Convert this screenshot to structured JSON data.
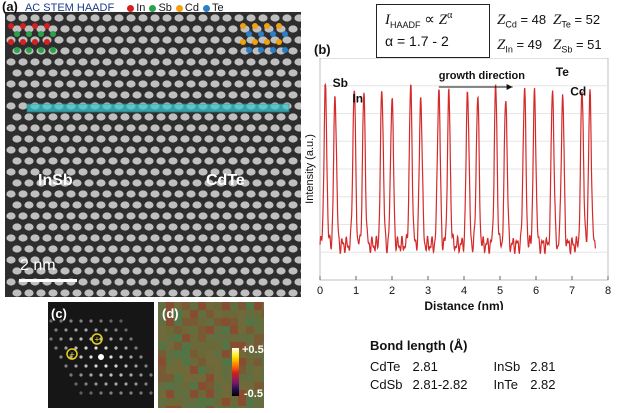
{
  "panel_a": {
    "label": "(a)",
    "technique": "AC STEM HAADF",
    "legend": [
      {
        "element": "In",
        "color": "#d42020"
      },
      {
        "element": "Sb",
        "color": "#2aa24a"
      },
      {
        "element": "Cd",
        "color": "#f0a010"
      },
      {
        "element": "Te",
        "color": "#2a7fc8"
      }
    ],
    "region_left": "InSb",
    "region_right": "CdTe",
    "scale_bar": "2 nm",
    "line_color": "#3cc8d0"
  },
  "equation": {
    "line1_I": "I",
    "line1_sub": "HAADF",
    "line1_prop": "∝",
    "line1_Z": "Z",
    "line1_exp": "α",
    "line2": "α = 1.7 - 2"
  },
  "z_values": [
    {
      "sym": "Z",
      "sub": "Cd",
      "val": "= 48"
    },
    {
      "sym": "Z",
      "sub": "Te",
      "val": "= 52"
    },
    {
      "sym": "Z",
      "sub": "In",
      "val": "= 49"
    },
    {
      "sym": "Z",
      "sub": "Sb",
      "val": "= 51"
    }
  ],
  "panel_b": {
    "label": "(b)"
  },
  "chart_data": {
    "type": "line",
    "xlabel": "Distance (nm)",
    "ylabel": "Intensity (a.u.)",
    "xlim": [
      0,
      8
    ],
    "xticks": [
      "0",
      "1",
      "2",
      "3",
      "4",
      "5",
      "6",
      "7",
      "8"
    ],
    "line_color": "#d42a2a",
    "annotations": [
      "Sb",
      "In",
      "growth direction",
      "Te",
      "Cd"
    ],
    "x_peaks": [
      0.15,
      0.42,
      0.95,
      1.22,
      1.72,
      2.0,
      2.52,
      2.8,
      3.3,
      3.58,
      4.1,
      4.38,
      4.88,
      5.16,
      5.68,
      5.96,
      6.46,
      6.74,
      7.28,
      7.5
    ],
    "peak_pattern": "approximately periodic double peaks, ~0.79 nm period"
  },
  "panel_c": {
    "label": "(c)"
  },
  "panel_d": {
    "label": "(d)",
    "scale_top": "+0.5",
    "scale_bottom": "-0.5"
  },
  "bond_length": {
    "title": "Bond length (Å)",
    "rows": [
      {
        "pair1": "CdTe",
        "val1": "2.81",
        "pair2": "InSb",
        "val2": "2.81"
      },
      {
        "pair1": "CdSb",
        "val1": "2.81-2.82",
        "pair2": "InTe",
        "val2": "2.82"
      }
    ]
  }
}
